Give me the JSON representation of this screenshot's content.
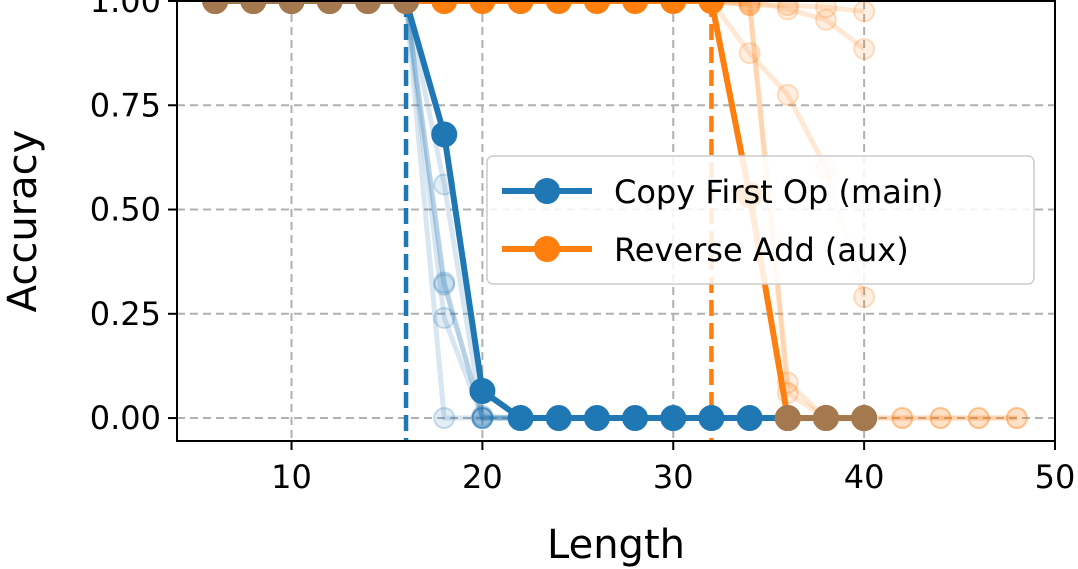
{
  "chart_data": {
    "type": "line",
    "xlabel": "Length",
    "ylabel": "Accuracy",
    "xlim": [
      4,
      50
    ],
    "ylim": [
      -0.055,
      1.0
    ],
    "xticks": [
      10,
      20,
      30,
      40,
      50
    ],
    "yticks": [
      0.0,
      0.25,
      0.5,
      0.75,
      1.0
    ],
    "xtick_labels": [
      "10",
      "20",
      "30",
      "40",
      "50"
    ],
    "ytick_labels": [
      "0.00",
      "0.25",
      "0.50",
      "0.75",
      "1.00"
    ],
    "grid": true,
    "legend_position": "center-right",
    "series": [
      {
        "name": "Copy First Op (main)",
        "color": "#1f77b4",
        "x": [
          6,
          8,
          10,
          12,
          14,
          16,
          18,
          20,
          22,
          24,
          26,
          28,
          30,
          32,
          34,
          36,
          38,
          40
        ],
        "values": [
          1.0,
          1.0,
          1.0,
          1.0,
          1.0,
          1.0,
          0.68,
          0.065,
          0.0,
          0.0,
          0.0,
          0.0,
          0.0,
          0.0,
          0.0,
          0.0,
          0.0,
          0.0
        ],
        "vline_x": 16,
        "faint_runs": [
          [
            1.0,
            1.0,
            1.0,
            1.0,
            1.0,
            1.0,
            0.56,
            0.0,
            0.0,
            0.0,
            0.0,
            0.0,
            0.0,
            0.0,
            0.0,
            0.0,
            0.0,
            0.0
          ],
          [
            1.0,
            1.0,
            1.0,
            1.0,
            1.0,
            1.0,
            0.325,
            0.0,
            0.0,
            0.0,
            0.0,
            0.0,
            0.0,
            0.0,
            0.0,
            0.0,
            0.0,
            0.0
          ],
          [
            1.0,
            1.0,
            1.0,
            1.0,
            1.0,
            1.0,
            0.32,
            0.005,
            0.0,
            0.0,
            0.0,
            0.0,
            0.0,
            0.0,
            0.0,
            0.0,
            0.0,
            0.0
          ],
          [
            1.0,
            1.0,
            1.0,
            1.0,
            1.0,
            1.0,
            0.24,
            0.0,
            0.0,
            0.0,
            0.0,
            0.0,
            0.0,
            0.0,
            0.0,
            0.0,
            0.0,
            0.0
          ],
          [
            1.0,
            1.0,
            1.0,
            1.0,
            1.0,
            1.0,
            0.0,
            0.0,
            0.0,
            0.0,
            0.0,
            0.0,
            0.0,
            0.0,
            0.0,
            0.0,
            0.0,
            0.0
          ]
        ]
      },
      {
        "name": "Reverse Add (aux)",
        "color": "#ff7f0e",
        "x": [
          6,
          8,
          10,
          12,
          14,
          16,
          18,
          20,
          22,
          24,
          26,
          28,
          30,
          32,
          34,
          36,
          38,
          40
        ],
        "values": [
          1.0,
          1.0,
          1.0,
          1.0,
          1.0,
          1.0,
          1.0,
          1.0,
          1.0,
          1.0,
          1.0,
          1.0,
          1.0,
          1.0,
          0.535,
          0.0,
          0.0,
          0.0
        ],
        "vline_x": 32,
        "faint_runs": [
          {
            "x": [
              32,
              34,
              36,
              38,
              40
            ],
            "values": [
              1.0,
              0.99,
              0.99,
              0.985,
              0.975
            ]
          },
          {
            "x": [
              32,
              34,
              36,
              38,
              40
            ],
            "values": [
              1.0,
              1.0,
              0.98,
              0.955,
              0.885
            ]
          },
          {
            "x": [
              32,
              34,
              36,
              38,
              40
            ],
            "values": [
              1.0,
              0.875,
              0.775,
              0.6,
              0.29
            ]
          },
          {
            "x": [
              32,
              34,
              36,
              38,
              40,
              42,
              44,
              46,
              48
            ],
            "values": [
              1.0,
              0.995,
              0.085,
              0.0,
              0.0,
              0.0,
              0.0,
              0.0,
              0.0
            ]
          },
          {
            "x": [
              32,
              34,
              36,
              38,
              40,
              42,
              44,
              46,
              48
            ],
            "values": [
              1.0,
              0.99,
              0.06,
              0.0,
              0.0,
              0.0,
              0.0,
              0.0,
              0.0
            ]
          }
        ]
      }
    ]
  }
}
